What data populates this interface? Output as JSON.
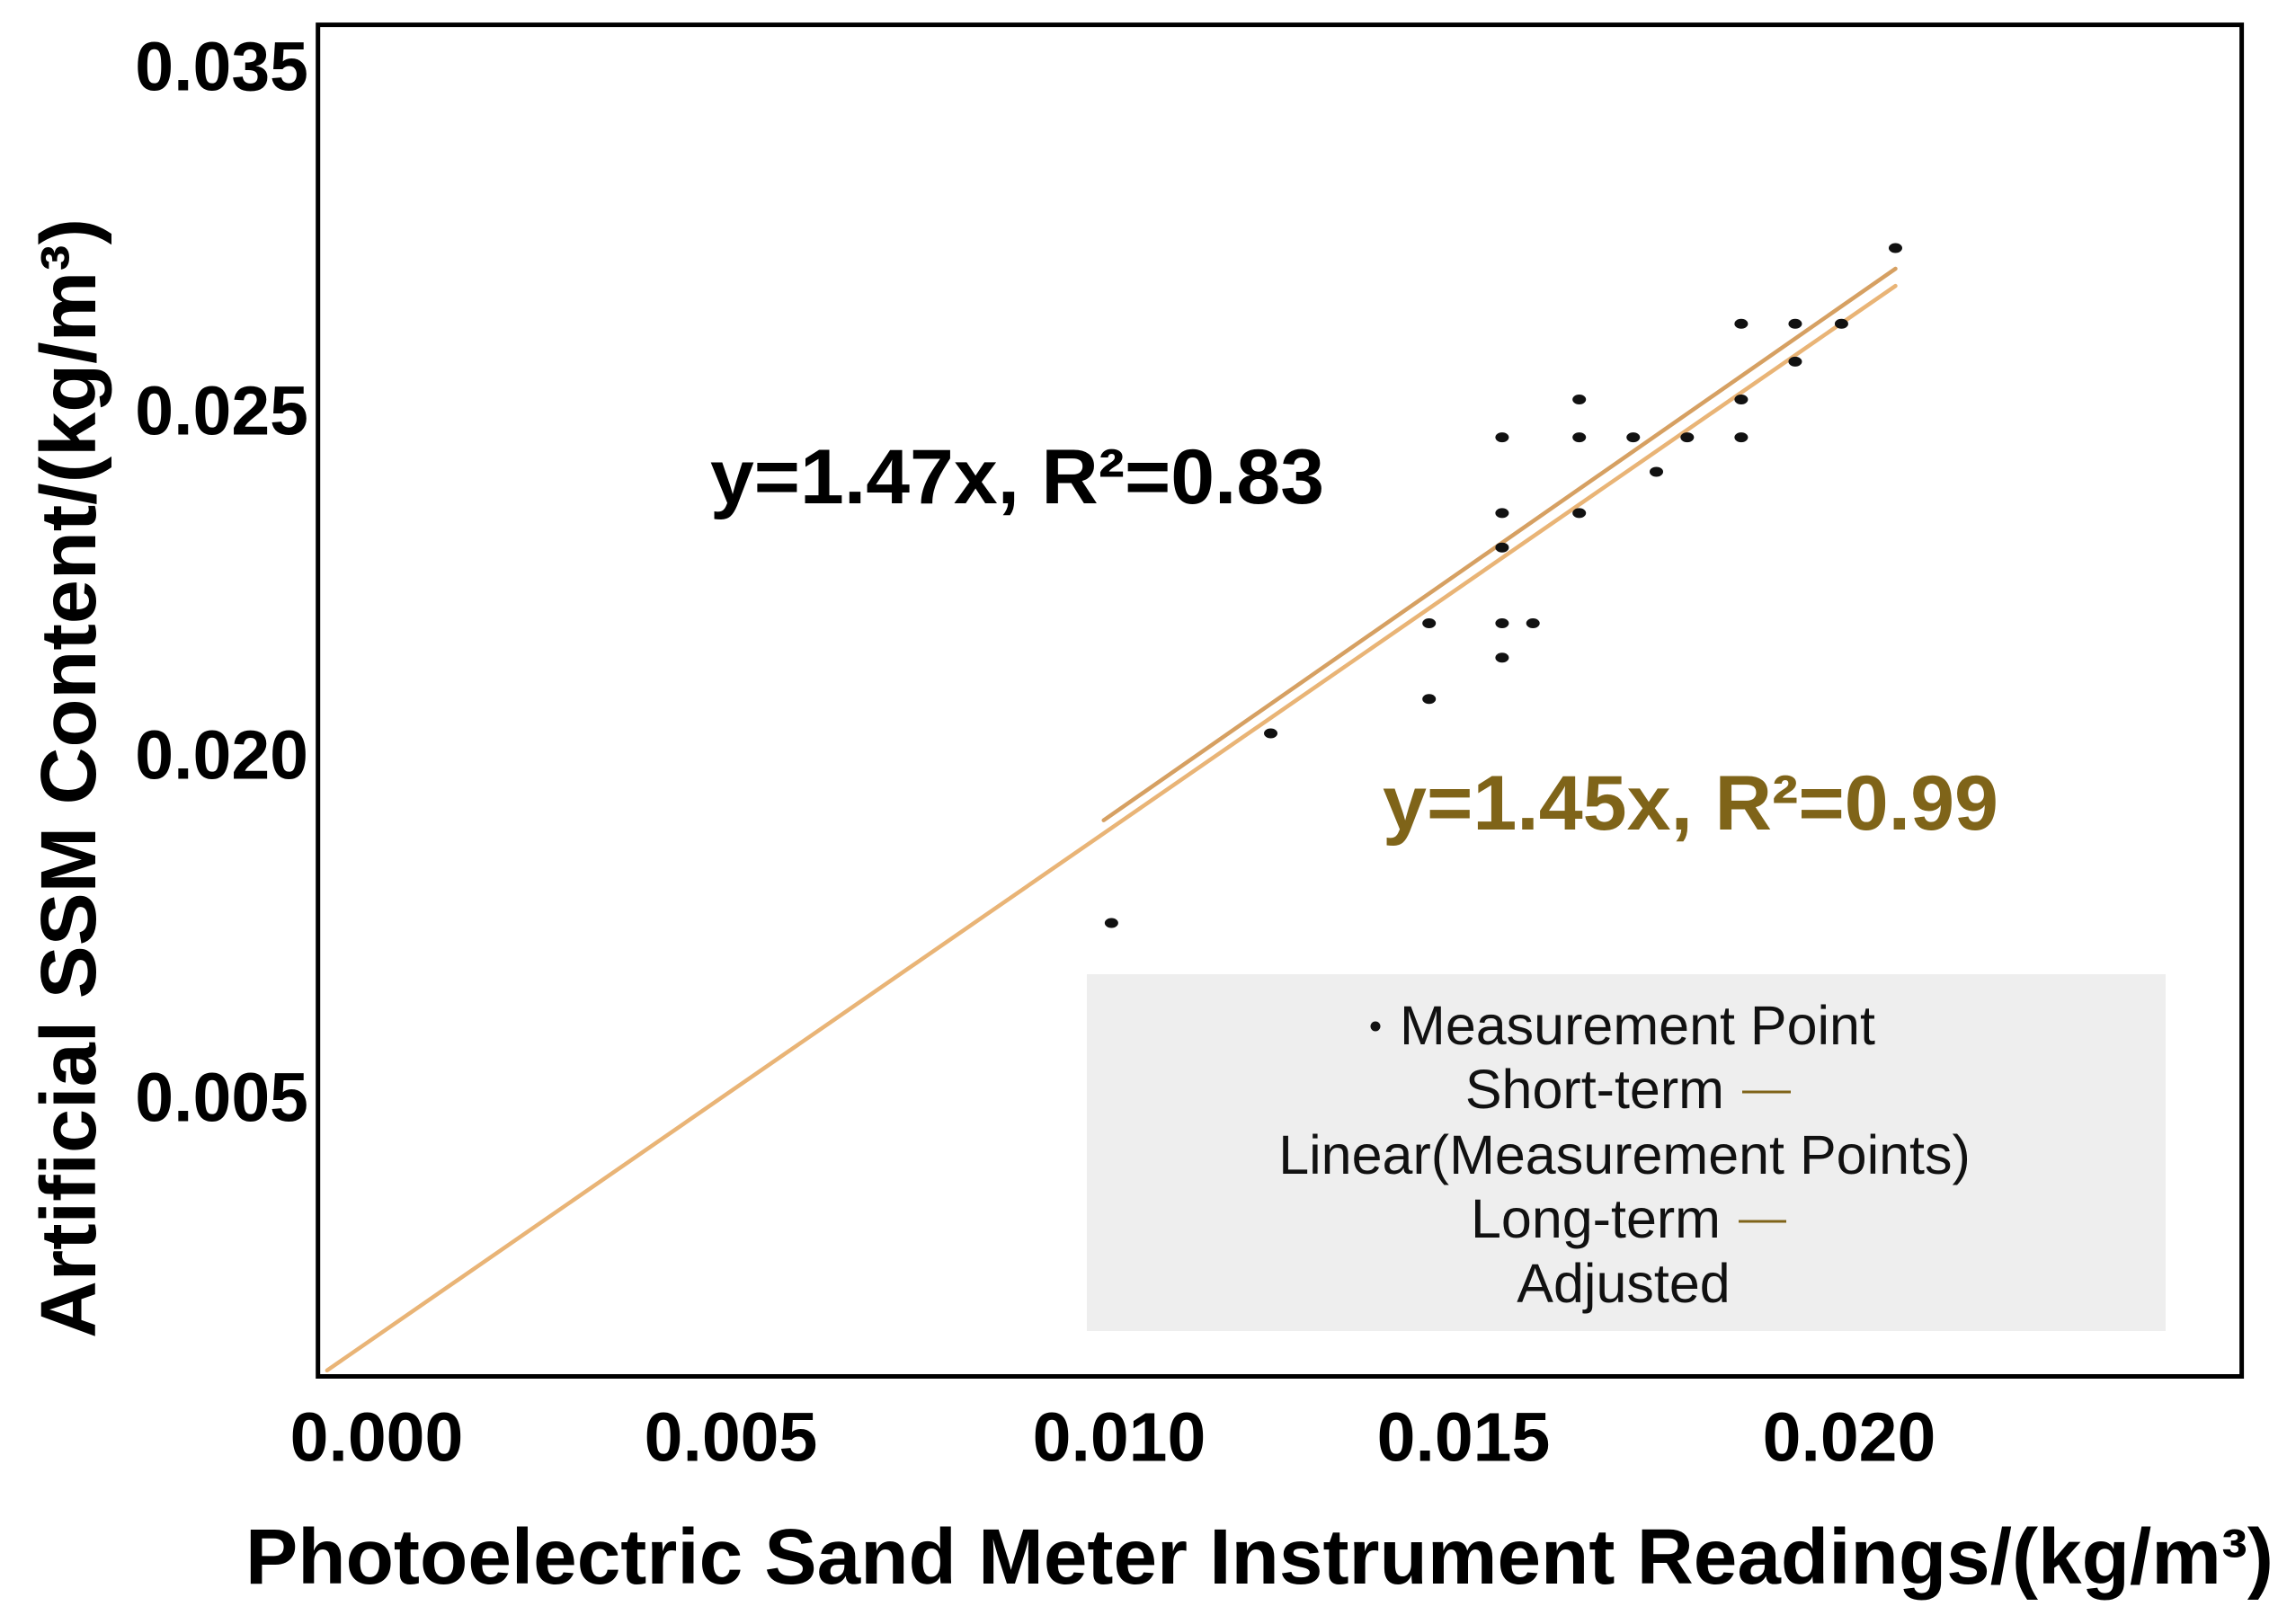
{
  "chart_data": {
    "type": "scatter",
    "title": "",
    "xlabel": "Photoelectric Sand Meter Instrument Readings/(kg/m³)",
    "ylabel": "Artificial SSM Content/(kg/m³)",
    "xticks": [
      "0.000",
      "0.005",
      "0.010",
      "0.015",
      "0.020"
    ],
    "yticks": [
      "0.035",
      "0.025",
      "0.020",
      "0.005"
    ],
    "xlim": [
      -0.0008,
      0.0251
    ],
    "ylim": [
      -0.0072,
      0.0362
    ],
    "grid": false,
    "legend_position": "bottom-right",
    "points": {
      "x": [
        0.0206,
        0.0186,
        0.0193,
        0.0199,
        0.0193,
        0.0165,
        0.0186,
        0.0155,
        0.0165,
        0.0172,
        0.0179,
        0.0186,
        0.0175,
        0.0155,
        0.0165,
        0.0155,
        0.0145,
        0.0155,
        0.0159,
        0.0155,
        0.0145,
        0.0122,
        0.0099
      ],
      "y": [
        0.0297,
        0.0275,
        0.0275,
        0.0275,
        0.0264,
        0.0253,
        0.0253,
        0.0246,
        0.0246,
        0.0246,
        0.0246,
        0.0246,
        0.0241,
        0.0235,
        0.0235,
        0.023,
        0.0219,
        0.0219,
        0.0219,
        0.0214,
        0.0208,
        0.0203,
        0.0126
      ]
    },
    "lines": [
      {
        "x": [
          -0.0007,
          0.0206
        ],
        "y": [
          -0.007,
          0.0286
        ]
      },
      {
        "x": [
          0.0098,
          0.0206
        ],
        "y": [
          0.0171,
          0.0291
        ]
      }
    ],
    "annotations": [
      {
        "text": "y=1.47x, R²=0.83",
        "color": "#000000"
      },
      {
        "text": "y=1.45x, R²=0.99",
        "color": "#7f6419"
      }
    ],
    "legend": [
      {
        "marker": "point",
        "label": "Measurement Point"
      },
      {
        "marker": "line",
        "term": "Short-term",
        "label": "Linear(Measurement Points)"
      },
      {
        "marker": "line",
        "term": "Long-term",
        "label": "Adjusted"
      }
    ]
  },
  "colors": {
    "points": "#111111",
    "lines": [
      "#e9b476",
      "#d6a062"
    ],
    "accent": "#7f6419",
    "legend_background": "#eeeeee",
    "frame": "#000000"
  }
}
